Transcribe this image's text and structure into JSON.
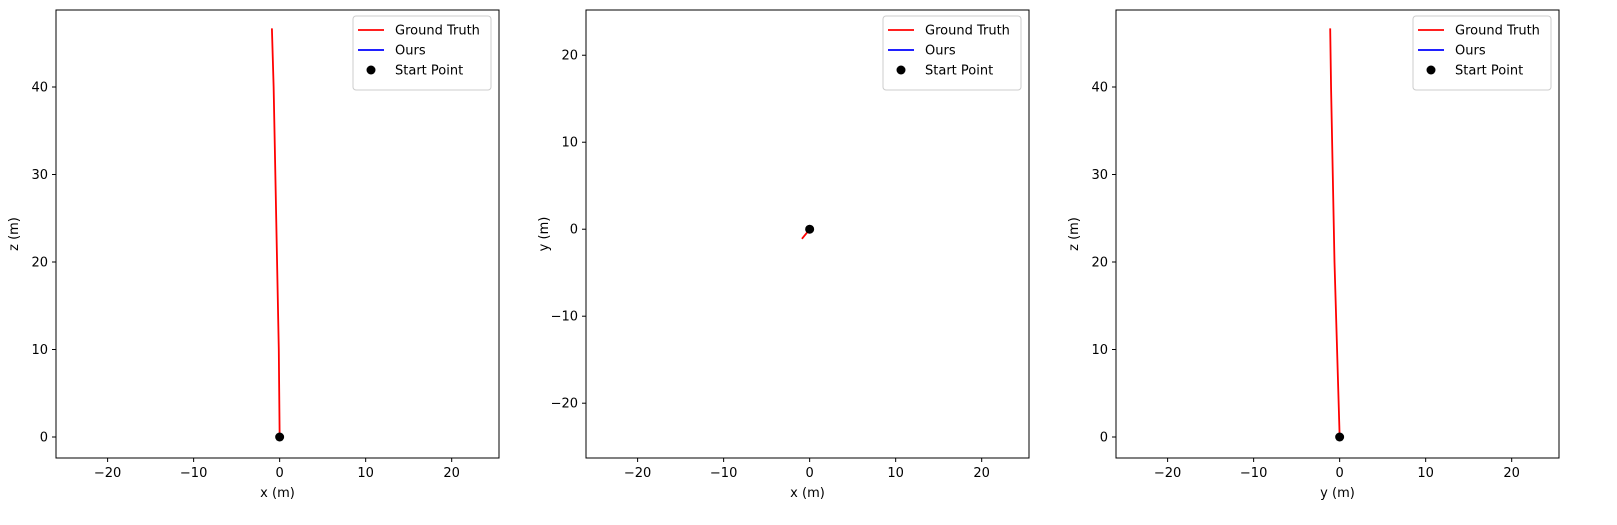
{
  "chart_data": [
    {
      "type": "line",
      "xlabel": "x (m)",
      "ylabel": "z (m)",
      "xlim": [
        -26,
        25.5
      ],
      "ylim": [
        -2.4,
        48.8
      ],
      "xticks": [
        -20,
        -10,
        0,
        10,
        20
      ],
      "yticks": [
        0,
        10,
        20,
        30,
        40
      ],
      "legend": "top-right",
      "grid": false,
      "series": [
        {
          "name": "Ground Truth",
          "color": "#ff0000",
          "marker": "line",
          "x": [
            0,
            -0.1,
            -0.3,
            -0.5,
            -0.7,
            -0.9
          ],
          "y": [
            0,
            10,
            20,
            30,
            40,
            46.7
          ]
        },
        {
          "name": "Ours",
          "color": "#0000ff",
          "marker": "line",
          "x": [],
          "y": []
        },
        {
          "name": "Start Point",
          "color": "#000000",
          "marker": "point",
          "x": [
            0
          ],
          "y": [
            0
          ]
        }
      ]
    },
    {
      "type": "line",
      "xlabel": "x (m)",
      "ylabel": "y (m)",
      "xlim": [
        -26,
        25.5
      ],
      "ylim": [
        -26.3,
        25.2
      ],
      "xticks": [
        -20,
        -10,
        0,
        10,
        20
      ],
      "yticks": [
        -20,
        -10,
        0,
        10,
        20
      ],
      "legend": "top-right",
      "grid": false,
      "series": [
        {
          "name": "Ground Truth",
          "color": "#ff0000",
          "marker": "line",
          "x": [
            0,
            -0.4,
            -0.9
          ],
          "y": [
            0,
            -0.5,
            -1.1
          ]
        },
        {
          "name": "Ours",
          "color": "#0000ff",
          "marker": "line",
          "x": [],
          "y": []
        },
        {
          "name": "Start Point",
          "color": "#000000",
          "marker": "point",
          "x": [
            0
          ],
          "y": [
            0
          ]
        }
      ]
    },
    {
      "type": "line",
      "xlabel": "y (m)",
      "ylabel": "z (m)",
      "xlim": [
        -26,
        25.5
      ],
      "ylim": [
        -2.4,
        48.8
      ],
      "xticks": [
        -20,
        -10,
        0,
        10,
        20
      ],
      "yticks": [
        0,
        10,
        20,
        30,
        40
      ],
      "legend": "top-right",
      "grid": false,
      "series": [
        {
          "name": "Ground Truth",
          "color": "#ff0000",
          "marker": "line",
          "x": [
            0,
            -0.3,
            -0.6,
            -0.8,
            -1.0,
            -1.1
          ],
          "y": [
            0,
            10,
            20,
            30,
            40,
            46.7
          ]
        },
        {
          "name": "Ours",
          "color": "#0000ff",
          "marker": "line",
          "x": [],
          "y": []
        },
        {
          "name": "Start Point",
          "color": "#000000",
          "marker": "point",
          "x": [
            0
          ],
          "y": [
            0
          ]
        }
      ]
    }
  ]
}
